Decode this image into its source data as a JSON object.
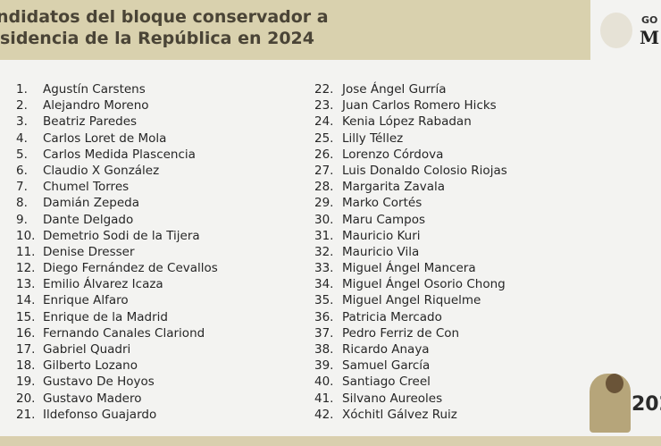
{
  "header": {
    "title_line1": "ndidatos del bloque conservador a",
    "title_line2": "sidencia de la República en 2024",
    "gov_line1": "GO",
    "gov_line2": "M"
  },
  "badge": {
    "year": "202"
  },
  "candidates_left": [
    "Agustín Carstens",
    "Alejandro Moreno",
    "Beatriz Paredes",
    "Carlos Loret de Mola",
    "Carlos Medida Plascencia",
    "Claudio X González",
    "Chumel Torres",
    "Damián Zepeda",
    "Dante Delgado",
    "Demetrio Sodi de la Tijera",
    "Denise Dresser",
    "Diego Fernández de Cevallos",
    "Emilio Álvarez Icaza",
    "Enrique Alfaro",
    "Enrique de la Madrid",
    "Fernando Canales Clariond",
    "Gabriel Quadri",
    "Gilberto Lozano",
    "Gustavo De Hoyos",
    "Gustavo Madero",
    "Ildefonso Guajardo"
  ],
  "candidates_right": [
    "Jose Ángel Gurría",
    "Juan Carlos Romero Hicks",
    "Kenia López Rabadan",
    "Lilly Téllez",
    "Lorenzo Córdova",
    "Luis Donaldo Colosio Riojas",
    "Margarita Zavala",
    "Marko Cortés",
    "Maru Campos",
    "Mauricio Kuri",
    "Mauricio Vila",
    "Miguel Ángel Mancera",
    "Miguel Ángel Osorio Chong",
    "Miguel Angel Riquelme",
    "Patricia Mercado",
    "Pedro Ferriz de Con",
    "Ricardo Anaya",
    "Samuel García",
    "Santiago Creel",
    "Silvano Aureoles",
    "Xóchitl Gálvez Ruiz"
  ]
}
